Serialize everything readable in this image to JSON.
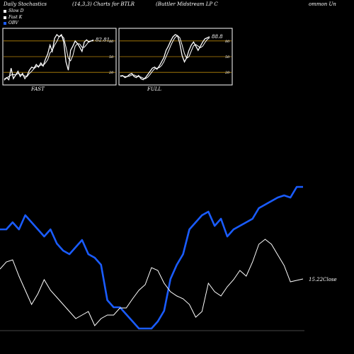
{
  "header": {
    "title": "Daily Stochastics",
    "params": "(14,3,3) Charts for BTLR",
    "company": "(Buttler Midstream LP C",
    "tail": "ommon Un"
  },
  "legend": [
    {
      "label": "Slow D",
      "color": "#ffffff"
    },
    {
      "label": "Fast K",
      "color": "#ffffff"
    },
    {
      "label": "OBV",
      "color": "#1a5cff"
    }
  ],
  "colors": {
    "obv": "#1a5cff",
    "price": "#ffffff",
    "level": "#b8860b",
    "border": "#ffffff"
  },
  "panels": [
    {
      "label": "FAST",
      "last_value": "82.81",
      "levels": [
        80,
        50,
        20
      ],
      "level_labels": [
        "80",
        "50",
        "20"
      ],
      "k": [
        5,
        10,
        6,
        28,
        8,
        15,
        22,
        12,
        18,
        8,
        14,
        24,
        30,
        28,
        35,
        30,
        38,
        32,
        45,
        55,
        72,
        60,
        85,
        92,
        88,
        92,
        78,
        40,
        24,
        62,
        70,
        80,
        75,
        68,
        60,
        78,
        82,
        78,
        80,
        82
      ],
      "d": [
        8,
        9,
        12,
        15,
        16,
        15,
        18,
        16,
        15,
        13,
        12,
        18,
        22,
        27,
        31,
        32,
        34,
        33,
        38,
        44,
        57,
        62,
        72,
        79,
        88,
        90,
        86,
        68,
        47,
        42,
        52,
        70,
        75,
        74,
        68,
        68,
        73,
        79,
        80,
        80
      ]
    },
    {
      "label": "FULL",
      "last_value": "88.8",
      "levels": [
        80,
        50,
        20
      ],
      "level_labels": [
        "80",
        "50",
        "20"
      ],
      "k": [
        12,
        14,
        10,
        12,
        16,
        18,
        12,
        10,
        14,
        8,
        6,
        10,
        16,
        22,
        28,
        30,
        26,
        32,
        40,
        48,
        62,
        70,
        80,
        88,
        92,
        90,
        75,
        52,
        40,
        48,
        62,
        72,
        78,
        70,
        62,
        70,
        78,
        84,
        86,
        88
      ],
      "d": [
        14,
        13,
        12,
        12,
        13,
        15,
        15,
        13,
        12,
        11,
        9,
        8,
        11,
        16,
        22,
        27,
        28,
        29,
        33,
        40,
        50,
        60,
        71,
        80,
        87,
        90,
        86,
        72,
        56,
        47,
        50,
        61,
        71,
        73,
        70,
        67,
        70,
        77,
        83,
        86
      ]
    }
  ],
  "chart_data": {
    "type": "line",
    "series": [
      {
        "name": "OBV",
        "values": [
          420,
          420,
          410,
          420,
          400,
          410,
          420,
          430,
          420,
          440,
          450,
          455,
          445,
          435,
          455,
          460,
          470,
          520,
          530,
          530,
          540,
          550,
          560,
          560,
          560,
          550,
          535,
          490,
          470,
          455,
          420,
          410,
          400,
          395,
          415,
          405,
          430,
          420,
          415,
          410,
          405,
          390,
          385,
          380,
          375,
          372,
          375,
          360,
          360
        ]
      },
      {
        "series_ref": "price",
        "values": [
          90,
          100,
          103,
          80,
          60,
          40,
          55,
          75,
          60,
          50,
          40,
          30,
          20,
          25,
          30,
          10,
          20,
          25,
          25,
          35,
          35,
          48,
          60,
          68,
          92,
          88,
          70,
          58,
          52,
          48,
          40,
          22,
          30,
          70,
          58,
          52,
          65,
          75,
          88,
          80,
          100,
          125,
          132,
          125,
          110,
          95,
          72,
          74,
          76
        ]
      }
    ],
    "price_last_label": "15.22Close"
  }
}
